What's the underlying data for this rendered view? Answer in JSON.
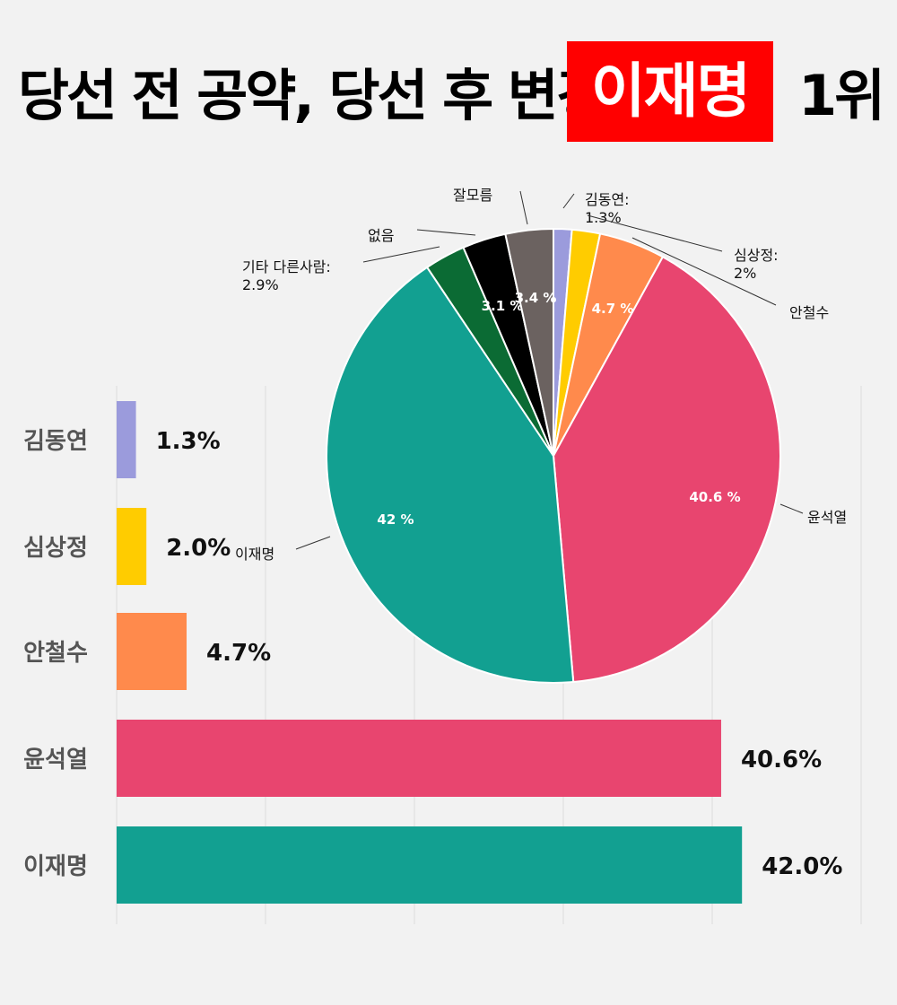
{
  "title": {
    "main": "당선 전 공약, 당선 후 변경할 후보",
    "highlight": "이재명",
    "rank": "1위"
  },
  "colors": {
    "background": "#f2f2f2",
    "highlight_bg": "#ff0000",
    "김동연": "#9b9bdc",
    "심상정": "#ffcc00",
    "안철수": "#ff8a4c",
    "윤석열": "#e8456f",
    "이재명": "#12a091",
    "기타 다른사람": "#0b6b34",
    "없음": "#000000",
    "잘모름": "#6b6260"
  },
  "chart_data": [
    {
      "type": "pie",
      "slices": [
        {
          "label": "김동연",
          "value": 1.3,
          "callout": "김동연:",
          "callout_value": "1.3%",
          "inside": ""
        },
        {
          "label": "심상정",
          "value": 2.0,
          "callout": "심상정:",
          "callout_value": "2%",
          "inside": ""
        },
        {
          "label": "안철수",
          "value": 4.7,
          "callout": "안철수",
          "callout_value": "",
          "inside": "4.7 %"
        },
        {
          "label": "윤석열",
          "value": 40.6,
          "callout": "윤석열",
          "callout_value": "",
          "inside": "40.6 %"
        },
        {
          "label": "이재명",
          "value": 42.0,
          "callout": "이재명",
          "callout_value": "",
          "inside": "42 %"
        },
        {
          "label": "기타 다른사람",
          "value": 2.9,
          "callout": "기타 다른사람:",
          "callout_value": "2.9%",
          "inside": ""
        },
        {
          "label": "없음",
          "value": 3.1,
          "callout": "없음",
          "callout_value": "",
          "inside": "3.1 %"
        },
        {
          "label": "잘모름",
          "value": 3.4,
          "callout": "잘모름",
          "callout_value": "",
          "inside": "3.4 %"
        }
      ]
    },
    {
      "type": "bar",
      "orientation": "horizontal",
      "categories": [
        "김동연",
        "심상정",
        "안철수",
        "윤석열",
        "이재명"
      ],
      "values": [
        1.3,
        2.0,
        4.7,
        40.6,
        42.0
      ],
      "value_labels": [
        "1.3%",
        "2.0%",
        "4.7%",
        "40.6%",
        "42.0%"
      ],
      "xlim": [
        0,
        50
      ],
      "grid": true
    }
  ]
}
